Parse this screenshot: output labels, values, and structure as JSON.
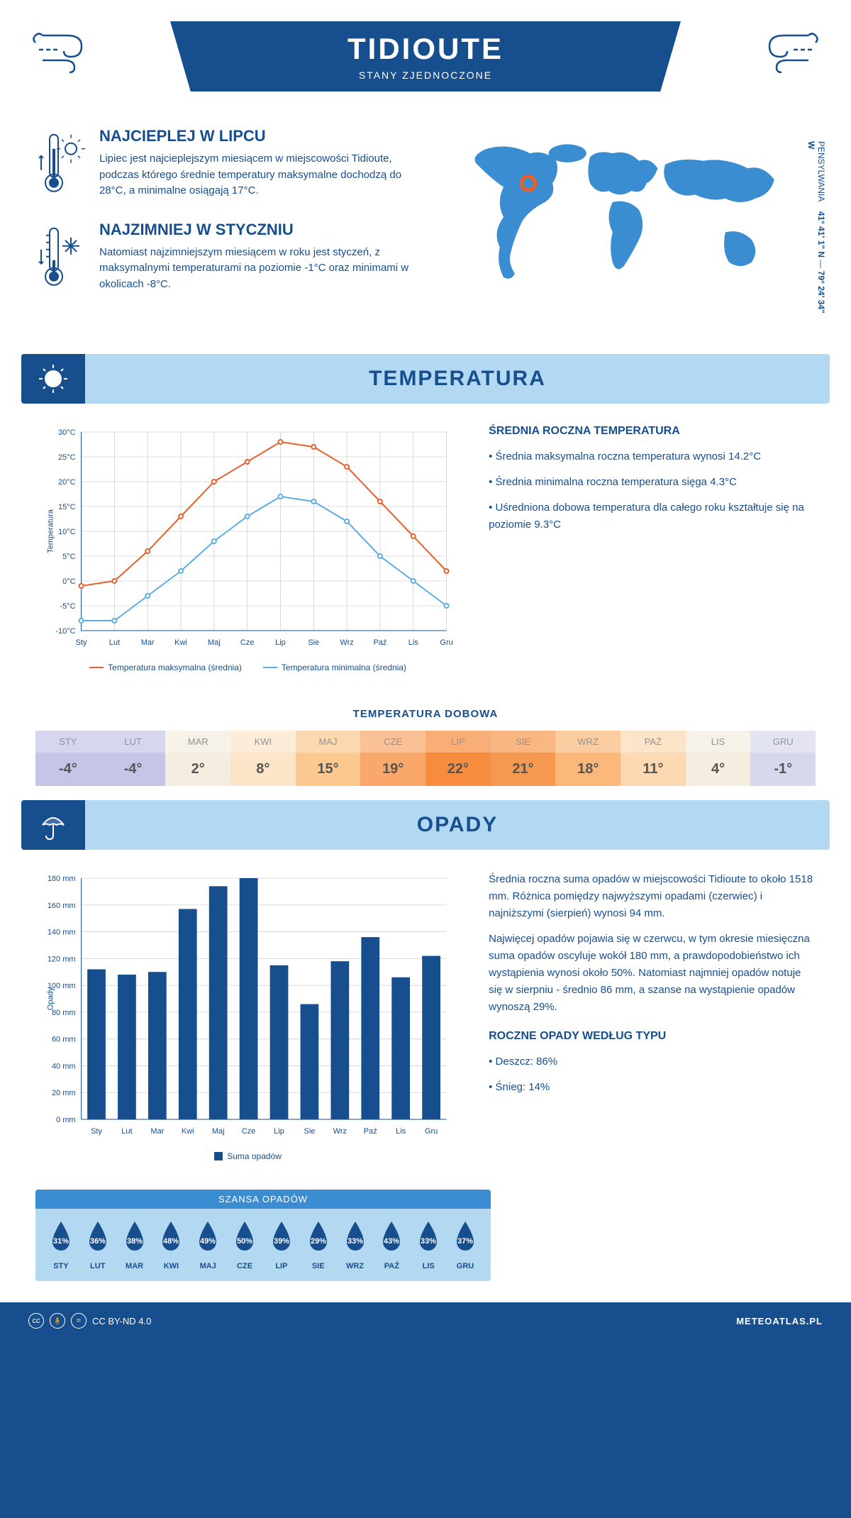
{
  "header": {
    "title": "TIDIOUTE",
    "subtitle": "STANY ZJEDNOCZONE"
  },
  "coords": {
    "state": "PENSYLWANIA",
    "lat": "41° 41' 1\" N",
    "lon": "79° 24' 34\" W"
  },
  "overview": {
    "warm": {
      "title": "NAJCIEPLEJ W LIPCU",
      "text": "Lipiec jest najcieplejszym miesiącem w miejscowości Tidioute, podczas którego średnie temperatury maksymalne dochodzą do 28°C, a minimalne osiągają 17°C."
    },
    "cold": {
      "title": "NAJZIMNIEJ W STYCZNIU",
      "text": "Natomiast najzimniejszym miesiącem w roku jest styczeń, z maksymalnymi temperaturami na poziomie -1°C oraz minimami w okolicach -8°C."
    }
  },
  "sections": {
    "temperature": "TEMPERATURA",
    "precip": "OPADY"
  },
  "temp_chart": {
    "months": [
      "Sty",
      "Lut",
      "Mar",
      "Kwi",
      "Maj",
      "Cze",
      "Lip",
      "Sie",
      "Wrz",
      "Paź",
      "Lis",
      "Gru"
    ],
    "max": [
      -1,
      0,
      6,
      13,
      20,
      24,
      28,
      27,
      23,
      16,
      9,
      2
    ],
    "min": [
      -8,
      -8,
      -3,
      2,
      8,
      13,
      17,
      16,
      12,
      5,
      0,
      -5
    ],
    "ylim": [
      -10,
      30
    ],
    "yticks": [
      -10,
      -5,
      0,
      5,
      10,
      15,
      20,
      25,
      30
    ],
    "max_color": "#e8602c",
    "min_color": "#5dade2",
    "grid_color": "#d0d0d0",
    "ylabel": "Temperatura",
    "legend_max": "Temperatura maksymalna (średnia)",
    "legend_min": "Temperatura minimalna (średnia)"
  },
  "temp_text": {
    "heading": "ŚREDNIA ROCZNA TEMPERATURA",
    "p1": "• Średnia maksymalna roczna temperatura wynosi 14.2°C",
    "p2": "• Średnia minimalna roczna temperatura sięga 4.3°C",
    "p3": "• Uśredniona dobowa temperatura dla całego roku kształtuje się na poziomie 9.3°C"
  },
  "daily": {
    "heading": "TEMPERATURA DOBOWA",
    "months": [
      "STY",
      "LUT",
      "MAR",
      "KWI",
      "MAJ",
      "CZE",
      "LIP",
      "SIE",
      "WRZ",
      "PAŹ",
      "LIS",
      "GRU"
    ],
    "values": [
      "-4°",
      "-4°",
      "2°",
      "8°",
      "15°",
      "19°",
      "22°",
      "21°",
      "18°",
      "11°",
      "4°",
      "-1°"
    ],
    "colors": [
      "#c5c5e8",
      "#c5c5e8",
      "#f5ede0",
      "#fce4c8",
      "#fbc88f",
      "#f9a76a",
      "#f78c3f",
      "#f79850",
      "#fbb87a",
      "#fcd9b3",
      "#f5ede0",
      "#d8d8ec"
    ]
  },
  "precip_chart": {
    "months": [
      "Sty",
      "Lut",
      "Mar",
      "Kwi",
      "Maj",
      "Cze",
      "Lip",
      "Sie",
      "Wrz",
      "Paź",
      "Lis",
      "Gru"
    ],
    "values": [
      112,
      108,
      110,
      157,
      174,
      180,
      115,
      86,
      118,
      136,
      106,
      122
    ],
    "ylim": [
      0,
      180
    ],
    "yticks": [
      0,
      20,
      40,
      60,
      80,
      100,
      120,
      140,
      160,
      180
    ],
    "bar_color": "#164e8e",
    "grid_color": "#d0d0d0",
    "ylabel": "Opady",
    "legend": "Suma opadów"
  },
  "precip_text": {
    "p1": "Średnia roczna suma opadów w miejscowości Tidioute to około 1518 mm. Różnica pomiędzy najwyższymi opadami (czerwiec) i najniższymi (sierpień) wynosi 94 mm.",
    "p2": "Najwięcej opadów pojawia się w czerwcu, w tym okresie miesięczna suma opadów oscyluje wokół 180 mm, a prawdopodobieństwo ich wystąpienia wynosi około 50%. Natomiast najmniej opadów notuje się w sierpniu - średnio 86 mm, a szanse na wystąpienie opadów wynoszą 29%.",
    "type_heading": "ROCZNE OPADY WEDŁUG TYPU",
    "type1": "• Deszcz: 86%",
    "type2": "• Śnieg: 14%"
  },
  "chance": {
    "heading": "SZANSA OPADÓW",
    "months": [
      "STY",
      "LUT",
      "MAR",
      "KWI",
      "MAJ",
      "CZE",
      "LIP",
      "SIE",
      "WRZ",
      "PAŹ",
      "LIS",
      "GRU"
    ],
    "values": [
      "31%",
      "36%",
      "38%",
      "48%",
      "49%",
      "50%",
      "39%",
      "29%",
      "33%",
      "43%",
      "33%",
      "37%"
    ],
    "drop_color": "#164e8e"
  },
  "footer": {
    "license": "CC BY-ND 4.0",
    "site": "METEOATLAS.PL"
  }
}
